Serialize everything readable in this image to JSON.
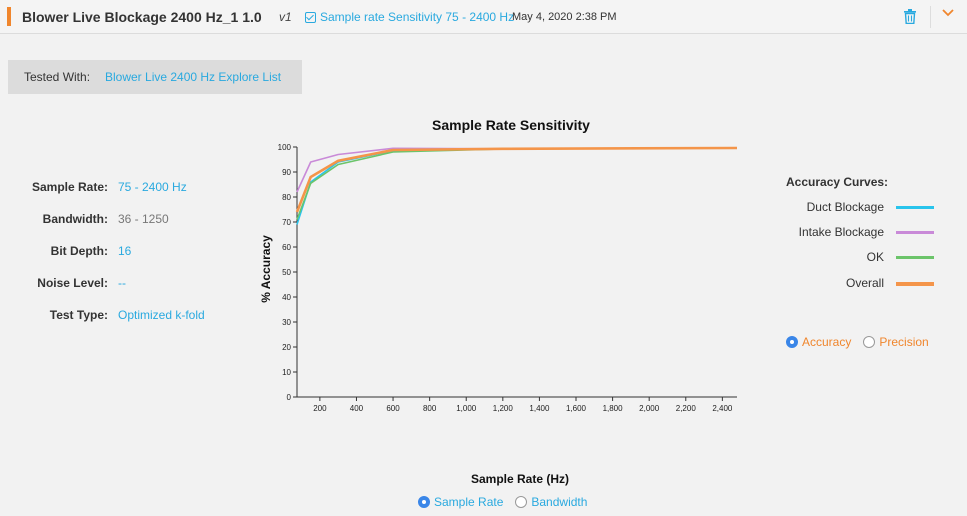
{
  "header": {
    "title": "Blower Live Blockage 2400 Hz_1 1.0",
    "version": "v1",
    "link": "Sample rate Sensitivity 75 - 2400 Hz",
    "date": "May 4, 2020 2:38 PM"
  },
  "tested_with": {
    "label": "Tested With:",
    "link": "Blower Live 2400 Hz Explore List"
  },
  "info": [
    {
      "label": "Sample Rate:",
      "value": "75 - 2400 Hz"
    },
    {
      "label": "Bandwidth:",
      "value": "36 - 1250"
    },
    {
      "label": "Bit Depth:",
      "value": "16"
    },
    {
      "label": "Noise Level:",
      "value": "--"
    },
    {
      "label": "Test Type:",
      "value": "Optimized k-fold"
    }
  ],
  "legend": {
    "title": "Accuracy Curves:",
    "items": [
      {
        "name": "Duct Blockage",
        "color": "#29c4ec"
      },
      {
        "name": "Intake Blockage",
        "color": "#c98ad8"
      },
      {
        "name": "OK",
        "color": "#6cc46a"
      },
      {
        "name": "Overall",
        "color": "#f4954a"
      }
    ]
  },
  "metric_radio": {
    "accuracy": "Accuracy",
    "precision": "Precision"
  },
  "axis_radio": {
    "sample_rate": "Sample Rate",
    "bandwidth": "Bandwidth"
  },
  "colors": {
    "accent": "#f0862d",
    "link": "#29a9df",
    "radio": "#3a86e8",
    "metric_label": "#f0862d"
  },
  "chart_data": {
    "type": "line",
    "title": "Sample Rate Sensitivity",
    "xlabel": "Sample Rate (Hz)",
    "ylabel": "% Accuracy",
    "xlim": [
      75,
      2480
    ],
    "ylim": [
      0,
      100
    ],
    "xticks": [
      200,
      400,
      600,
      800,
      1000,
      1200,
      1400,
      1600,
      1800,
      2000,
      2200,
      2400
    ],
    "xtick_labels": [
      "200",
      "400",
      "600",
      "800",
      "1,000",
      "1,200",
      "1,400",
      "1,600",
      "1,800",
      "2,000",
      "2,200",
      "2,400"
    ],
    "yticks": [
      0,
      10,
      20,
      30,
      40,
      50,
      60,
      70,
      80,
      90,
      100
    ],
    "x": [
      75,
      150,
      300,
      600,
      1200,
      2480
    ],
    "series": [
      {
        "name": "Duct Blockage",
        "color": "#29c4ec",
        "values": [
          69,
          86,
          94,
          98.5,
          99.3,
          99.6
        ]
      },
      {
        "name": "Intake Blockage",
        "color": "#c98ad8",
        "values": [
          82,
          94,
          97,
          99.5,
          99.3,
          99.6
        ]
      },
      {
        "name": "OK",
        "color": "#6cc46a",
        "values": [
          71,
          85.5,
          93,
          98,
          99.2,
          99.6
        ]
      },
      {
        "name": "Overall",
        "color": "#f4954a",
        "values": [
          74,
          88,
          94.5,
          98.8,
          99.3,
          99.6
        ]
      }
    ]
  }
}
